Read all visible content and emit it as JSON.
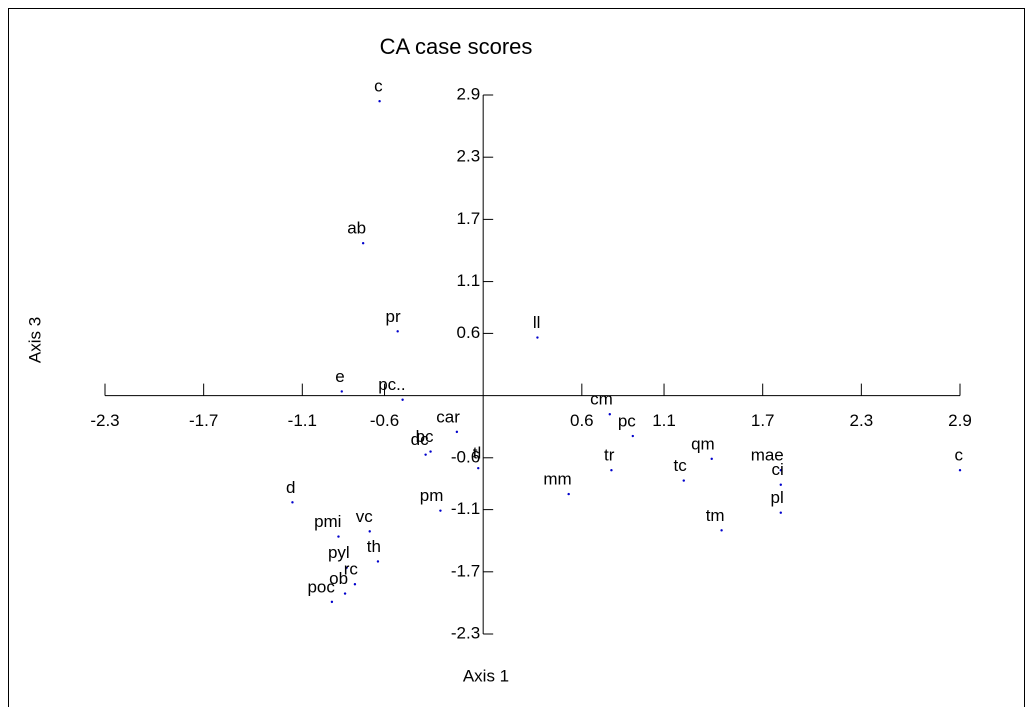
{
  "chart_data": {
    "type": "scatter",
    "title": "CA case scores",
    "xlabel": "Axis 1",
    "ylabel": "Axis 3",
    "color": "#0000cc",
    "xlim": [
      -2.3,
      2.9
    ],
    "ylim": [
      -2.3,
      2.9
    ],
    "xticks": [
      -2.3,
      -1.7,
      -1.1,
      -0.6,
      0.6,
      1.1,
      1.7,
      2.3,
      2.9
    ],
    "yticks": [
      -2.3,
      -1.7,
      -1.1,
      -0.6,
      0.6,
      1.1,
      1.7,
      2.3,
      2.9
    ],
    "labels": [
      "c",
      "ab",
      "pr",
      "ll",
      "e",
      "pc..",
      "cm",
      "pc",
      "car",
      "bc",
      "dc",
      "tl",
      "tr",
      "qm",
      "tc",
      "mae",
      "c",
      "ci",
      "pl",
      "mm",
      "tm",
      "d",
      "pm",
      "pmi",
      "vc",
      "th",
      "pyl",
      "rc",
      "poc",
      "ob"
    ],
    "x": [
      -0.63,
      -0.73,
      -0.52,
      0.33,
      -0.86,
      -0.49,
      0.77,
      0.91,
      -0.16,
      -0.32,
      -0.35,
      -0.03,
      0.78,
      1.39,
      1.22,
      1.81,
      2.9,
      1.81,
      1.81,
      0.52,
      1.45,
      -1.16,
      -0.26,
      -0.88,
      -0.69,
      -0.64,
      -0.83,
      -0.78,
      -0.92,
      -0.84
    ],
    "values": [
      2.84,
      1.47,
      0.62,
      0.56,
      0.04,
      -0.04,
      -0.18,
      -0.39,
      -0.35,
      -0.54,
      -0.57,
      -0.7,
      -0.72,
      -0.61,
      -0.82,
      -0.72,
      -0.72,
      -0.86,
      -1.13,
      -0.95,
      -1.3,
      -1.03,
      -1.11,
      -1.36,
      -1.31,
      -1.6,
      -1.66,
      -1.82,
      -1.99,
      -1.91
    ]
  }
}
